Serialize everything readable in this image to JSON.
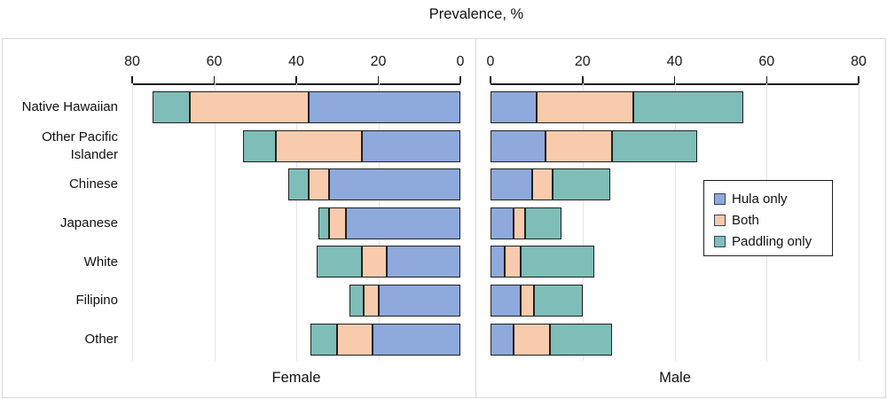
{
  "chart_data": {
    "type": "bar",
    "orientation": "horizontal",
    "stacked": true,
    "layout": "back-to-back pyramid: Female panel on left with reversed axis (0 at center), Male panel on right with normal axis",
    "title": "Prevalence, %",
    "categories": [
      "Native Hawaiian",
      "Other Pacific Islander",
      "Chinese",
      "Japanese",
      "White",
      "Filipino",
      "Other"
    ],
    "axis": {
      "min": 0,
      "max": 80,
      "ticks": [
        0,
        20,
        40,
        60,
        80
      ]
    },
    "stack_order_from_zero": [
      "Hula only",
      "Both",
      "Paddling only"
    ],
    "legend": {
      "position": "middle-right of male panel",
      "items": [
        {
          "label": "Hula only",
          "color": "#8EA9DB"
        },
        {
          "label": "Both",
          "color": "#F8CBAD"
        },
        {
          "label": "Paddling only",
          "color": "#7FBEB8"
        }
      ]
    },
    "panels": [
      {
        "name": "Female",
        "axis_direction": "reversed",
        "tick_labels_left_to_right": [
          "80",
          "60",
          "40",
          "20",
          "0"
        ],
        "series": [
          {
            "name": "Hula only",
            "values": [
              37,
              24,
              32,
              28,
              18,
              20,
              21.5
            ]
          },
          {
            "name": "Both",
            "values": [
              29,
              21,
              5,
              4,
              6,
              3.5,
              8.5
            ]
          },
          {
            "name": "Paddling only",
            "values": [
              9,
              8,
              5,
              2.5,
              11,
              3.5,
              6.5
            ]
          }
        ]
      },
      {
        "name": "Male",
        "axis_direction": "normal",
        "tick_labels_left_to_right": [
          "0",
          "20",
          "40",
          "60",
          "80"
        ],
        "series": [
          {
            "name": "Hula only",
            "values": [
              10,
              12,
              9,
              5,
              3,
              6.5,
              5
            ]
          },
          {
            "name": "Both",
            "values": [
              21,
              14.5,
              4.5,
              2.5,
              3.5,
              3,
              8
            ]
          },
          {
            "name": "Paddling only",
            "values": [
              24,
              18.5,
              12.5,
              8,
              16,
              10.5,
              13.5
            ]
          }
        ]
      }
    ]
  },
  "colors": {
    "bar_border": "#1F1F1F",
    "gridline": "#E4E4E4",
    "panel_border": "#D9D9D9",
    "axis": "#1A1A1A"
  }
}
